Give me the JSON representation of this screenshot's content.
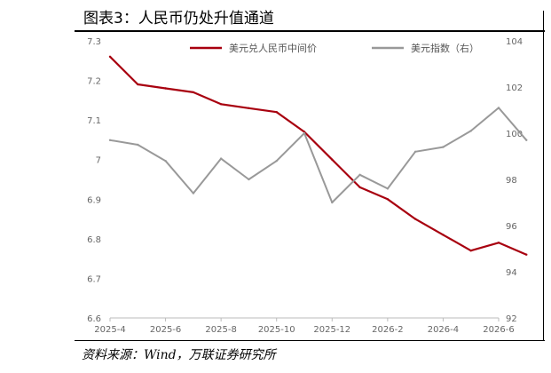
{
  "title": "图表3：人民币仍处升值通道",
  "source": "资料来源：Wind，万联证券研究所",
  "chart_data": {
    "type": "line",
    "x_ticks": [
      "2025-4",
      "2025-6",
      "2025-8",
      "2025-10",
      "2025-12",
      "2026-2",
      "2026-4",
      "2026-6"
    ],
    "y_left": {
      "ylim": [
        6.6,
        7.3
      ],
      "ticks": [
        "7.3",
        "7.2",
        "7.1",
        "7",
        "6.9",
        "6.8",
        "6.7",
        "6.6"
      ]
    },
    "y_right": {
      "ylim": [
        92,
        104
      ],
      "ticks": [
        "104",
        "102",
        "100",
        "98",
        "96",
        "94",
        "92"
      ]
    },
    "legend_position": "top",
    "series": [
      {
        "name": "美元兑人民币中间价",
        "axis": "left",
        "color": "#a8000f",
        "x": [
          "2025-04",
          "2025-05",
          "2025-06",
          "2025-07",
          "2025-08",
          "2025-09",
          "2025-10",
          "2025-11",
          "2025-12",
          "2026-01",
          "2026-02",
          "2026-03",
          "2026-04",
          "2026-05",
          "2026-06",
          "2026-07"
        ],
        "values": [
          7.26,
          7.19,
          7.18,
          7.17,
          7.14,
          7.13,
          7.12,
          7.07,
          7.0,
          6.93,
          6.9,
          6.85,
          6.81,
          6.77,
          6.79,
          6.76
        ]
      },
      {
        "name": "美元指数（右）",
        "axis": "right",
        "color": "#999999",
        "x": [
          "2025-04",
          "2025-05",
          "2025-06",
          "2025-07",
          "2025-08",
          "2025-09",
          "2025-10",
          "2025-11",
          "2025-12",
          "2026-01",
          "2026-02",
          "2026-03",
          "2026-04",
          "2026-05",
          "2026-06",
          "2026-07"
        ],
        "values": [
          99.7,
          99.5,
          98.8,
          97.4,
          98.9,
          98.0,
          98.8,
          100.0,
          97.0,
          98.2,
          97.6,
          99.2,
          99.4,
          100.1,
          101.1,
          99.7
        ]
      }
    ]
  }
}
